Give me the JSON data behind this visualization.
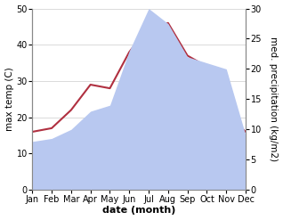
{
  "months": [
    "Jan",
    "Feb",
    "Mar",
    "Apr",
    "May",
    "Jun",
    "Jul",
    "Aug",
    "Sep",
    "Oct",
    "Nov",
    "Dec"
  ],
  "max_temp": [
    16,
    17,
    22,
    29,
    28,
    38,
    45,
    46,
    37,
    34,
    21,
    16
  ],
  "precipitation": [
    8,
    8.5,
    10,
    13,
    14,
    23,
    30,
    27.5,
    22,
    21,
    20,
    9
  ],
  "temp_color": "#b03040",
  "precip_fill_color": "#b8c8f0",
  "temp_ylim": [
    0,
    50
  ],
  "precip_ylim": [
    0,
    30
  ],
  "xlabel": "date (month)",
  "ylabel_left": "max temp (C)",
  "ylabel_right": "med. precipitation (kg/m2)",
  "label_fontsize": 8,
  "tick_fontsize": 7,
  "bg_color": "#ffffff"
}
